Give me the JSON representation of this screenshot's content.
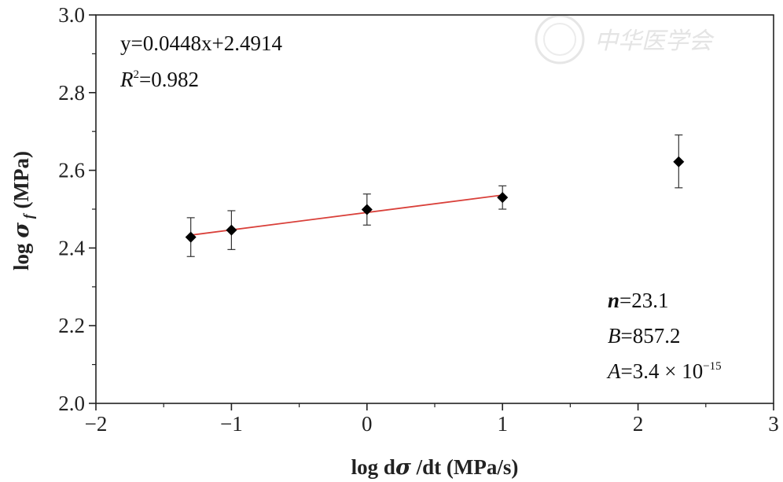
{
  "chart_data": {
    "type": "scatter",
    "xlabel": "log dσ/dt (MPa/s)",
    "ylabel": "log σf (MPa)",
    "xlim": [
      -2,
      3
    ],
    "ylim": [
      2.0,
      3.0
    ],
    "xticks": [
      -2,
      -1,
      0,
      1,
      2,
      3
    ],
    "xtick_labels": [
      "−2",
      "−1",
      "0",
      "1",
      "2",
      "3"
    ],
    "yticks": [
      2.0,
      2.2,
      2.4,
      2.6,
      2.8,
      3.0
    ],
    "ytick_labels": [
      "2.0",
      "2.2",
      "2.4",
      "2.6",
      "2.8",
      "3.0"
    ],
    "grid": false,
    "points": [
      {
        "x": -1.3,
        "y": 2.428,
        "err_low": 2.378,
        "err_high": 2.478
      },
      {
        "x": -1.0,
        "y": 2.446,
        "err_low": 2.396,
        "err_high": 2.496
      },
      {
        "x": 0.0,
        "y": 2.499,
        "err_low": 2.459,
        "err_high": 2.539
      },
      {
        "x": 1.0,
        "y": 2.53,
        "err_low": 2.5,
        "err_high": 2.56
      },
      {
        "x": 2.3,
        "y": 2.622,
        "err_low": 2.555,
        "err_high": 2.691
      }
    ],
    "fit": {
      "slope": 0.0448,
      "intercept": 2.4914,
      "x_range": [
        -1.3,
        1.0
      ],
      "color": "#d9403a"
    },
    "annotations": {
      "equation": "y=0.0448x+2.4914",
      "r2_label": "R",
      "r2_sup": "2",
      "r2_value": "=0.982",
      "n_label": "n",
      "n_value": "=23.1",
      "b_label": "B",
      "b_value": "=857.2",
      "a_label": "A",
      "a_value": "=3.4 × 10",
      "a_exp": "−15"
    },
    "watermark": "中华医学会"
  }
}
